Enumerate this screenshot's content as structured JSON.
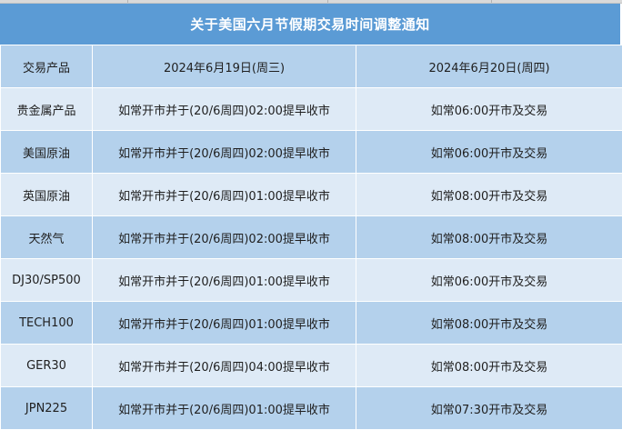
{
  "title": "关于美国六月节假期交易时间调整通知",
  "columns": [
    "交易产品",
    "2024年6月19日(周三)",
    "2024年6月20日(周四)"
  ],
  "rows": [
    {
      "product": "贵金属产品",
      "day1": "如常开市并于(20/6周四)02:00提早收市",
      "day2": "如常06:00开市及交易"
    },
    {
      "product": "美国原油",
      "day1": "如常开市并于(20/6周四)02:00提早收市",
      "day2": "如常06:00开市及交易"
    },
    {
      "product": "英国原油",
      "day1": "如常开市并于(20/6周四)01:00提早收市",
      "day2": "如常08:00开市及交易"
    },
    {
      "product": "天然气",
      "day1": "如常开市并于(20/6周四)02:00提早收市",
      "day2": "如常08:00开市及交易"
    },
    {
      "product": "DJ30/SP500",
      "day1": "如常开市并于(20/6周四)01:00提早收市",
      "day2": "如常06:00开市及交易"
    },
    {
      "product": "TECH100",
      "day1": "如常开市并于(20/6周四)01:00提早收市",
      "day2": "如常08:00开市及交易"
    },
    {
      "product": "GER30",
      "day1": "如常开市并于(20/6周四)04:00提早收市",
      "day2": "如常08:00开市及交易"
    },
    {
      "product": "JPN225",
      "day1": "如常开市并于(20/6周四)01:00提早收市",
      "day2": "如常07:30开市及交易"
    }
  ]
}
